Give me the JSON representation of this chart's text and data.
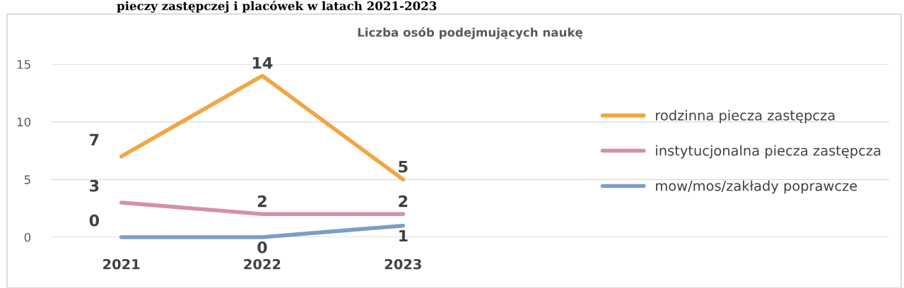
{
  "chart_data": {
    "type": "line",
    "title": "Liczba osób podejmujących naukę",
    "annotations": [
      "pieczy zastępczej i placówek w latach 2021-2023"
    ],
    "categories": [
      "2021",
      "2022",
      "2023"
    ],
    "series": [
      {
        "name": "rodzinna piecza zastępcza",
        "color": "#f4a442",
        "values": [
          7,
          14,
          5
        ]
      },
      {
        "name": "instytucjonalna piecza zastępcza",
        "color": "#d68fa8",
        "values": [
          3,
          2,
          2
        ]
      },
      {
        "name": "mow/mos/zakłady poprawcze",
        "color": "#7b9ec8",
        "values": [
          0,
          0,
          1
        ]
      }
    ],
    "ylim": [
      0,
      15
    ],
    "yticks": [
      0,
      5,
      10,
      15
    ],
    "grid": "y",
    "legend": "right",
    "data_labels": true,
    "marker": "none",
    "line_style": "solid"
  }
}
